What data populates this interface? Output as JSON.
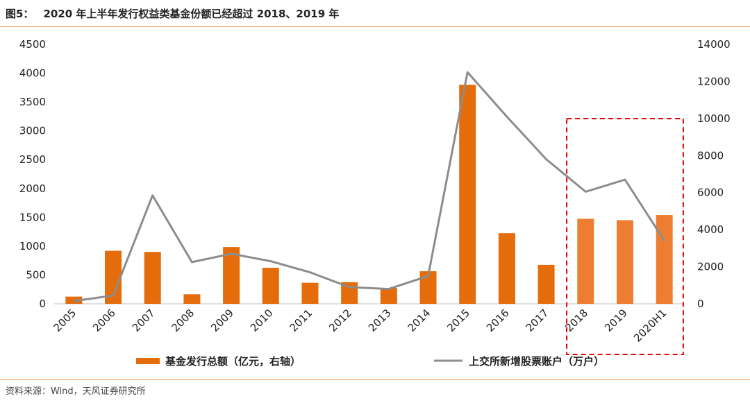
{
  "figure": {
    "label": "图5：",
    "title": "2020 年上半年发行权益类基金份额已经超过 2018、2019 年",
    "source": "资料来源：Wind，天风证券研究所"
  },
  "colors": {
    "bar": "#e46c0a",
    "bar_highlight": "#ed7d31",
    "line": "#8c8c8c",
    "highlight_box": "#e00000",
    "rule": "#f0a060"
  },
  "chart_data": {
    "type": "bar",
    "categories": [
      "2005",
      "2006",
      "2007",
      "2008",
      "2009",
      "2010",
      "2011",
      "2012",
      "2013",
      "2014",
      "2015",
      "2016",
      "2017",
      "2018",
      "2019",
      "2020H1"
    ],
    "series": [
      {
        "name": "基金发行总额（亿元，右轴）",
        "type": "bar",
        "axis": "left",
        "values": [
          125,
          920,
          900,
          165,
          985,
          625,
          365,
          375,
          275,
          565,
          3800,
          1225,
          675,
          1475,
          1450,
          1540
        ]
      },
      {
        "name": "上交所新增股票账户（万户）",
        "type": "line",
        "axis": "right",
        "values": [
          150,
          450,
          5850,
          2250,
          2700,
          2300,
          1700,
          900,
          800,
          1500,
          12500,
          10100,
          7800,
          6050,
          6700,
          3400
        ]
      }
    ],
    "left_axis": {
      "ticks": [
        "0",
        "500",
        "1000",
        "1500",
        "2000",
        "2500",
        "3000",
        "3500",
        "4000",
        "4500"
      ],
      "ylim": [
        0,
        4500
      ]
    },
    "right_axis": {
      "ticks": [
        "0",
        "2000",
        "4000",
        "6000",
        "8000",
        "10000",
        "12000",
        "14000"
      ],
      "ylim": [
        0,
        14000
      ]
    },
    "highlight_categories": [
      "2018",
      "2019",
      "2020H1"
    ],
    "grid": false,
    "legend": "bottom"
  }
}
